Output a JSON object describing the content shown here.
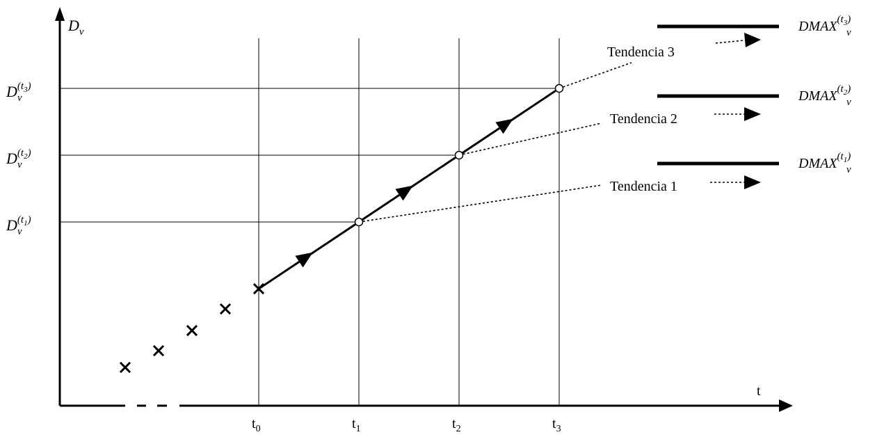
{
  "axes": {
    "y_label": {
      "base": "D",
      "sub": "v"
    },
    "x_label": "t"
  },
  "x_ticks": [
    {
      "base": "t",
      "sub": "0"
    },
    {
      "base": "t",
      "sub": "1"
    },
    {
      "base": "t",
      "sub": "2"
    },
    {
      "base": "t",
      "sub": "3"
    }
  ],
  "y_ticks": [
    {
      "base": "D",
      "sub": "v",
      "sup_open": "(",
      "sup_base": "t",
      "sup_sub": "1",
      "sup_close": ")"
    },
    {
      "base": "D",
      "sub": "v",
      "sup_open": "(",
      "sup_base": "t",
      "sup_sub": "2",
      "sup_close": ")"
    },
    {
      "base": "D",
      "sub": "v",
      "sup_open": "(",
      "sup_base": "t",
      "sup_sub": "3",
      "sup_close": ")"
    }
  ],
  "tendencies": [
    {
      "label": "Tendencia 1"
    },
    {
      "label": "Tendencia 2"
    },
    {
      "label": "Tendencia 3"
    }
  ],
  "limits": [
    {
      "base": "DMAX",
      "sub": "v",
      "sup_open": "(",
      "sup_base": "t",
      "sup_sub": "1",
      "sup_close": ")"
    },
    {
      "base": "DMAX",
      "sub": "v",
      "sup_open": "(",
      "sup_base": "t",
      "sup_sub": "2",
      "sup_close": ")"
    },
    {
      "base": "DMAX",
      "sub": "v",
      "sup_open": "(",
      "sup_base": "t",
      "sup_sub": "3",
      "sup_close": ")"
    }
  ],
  "colors": {
    "ink": "#000000",
    "background": "#ffffff"
  }
}
